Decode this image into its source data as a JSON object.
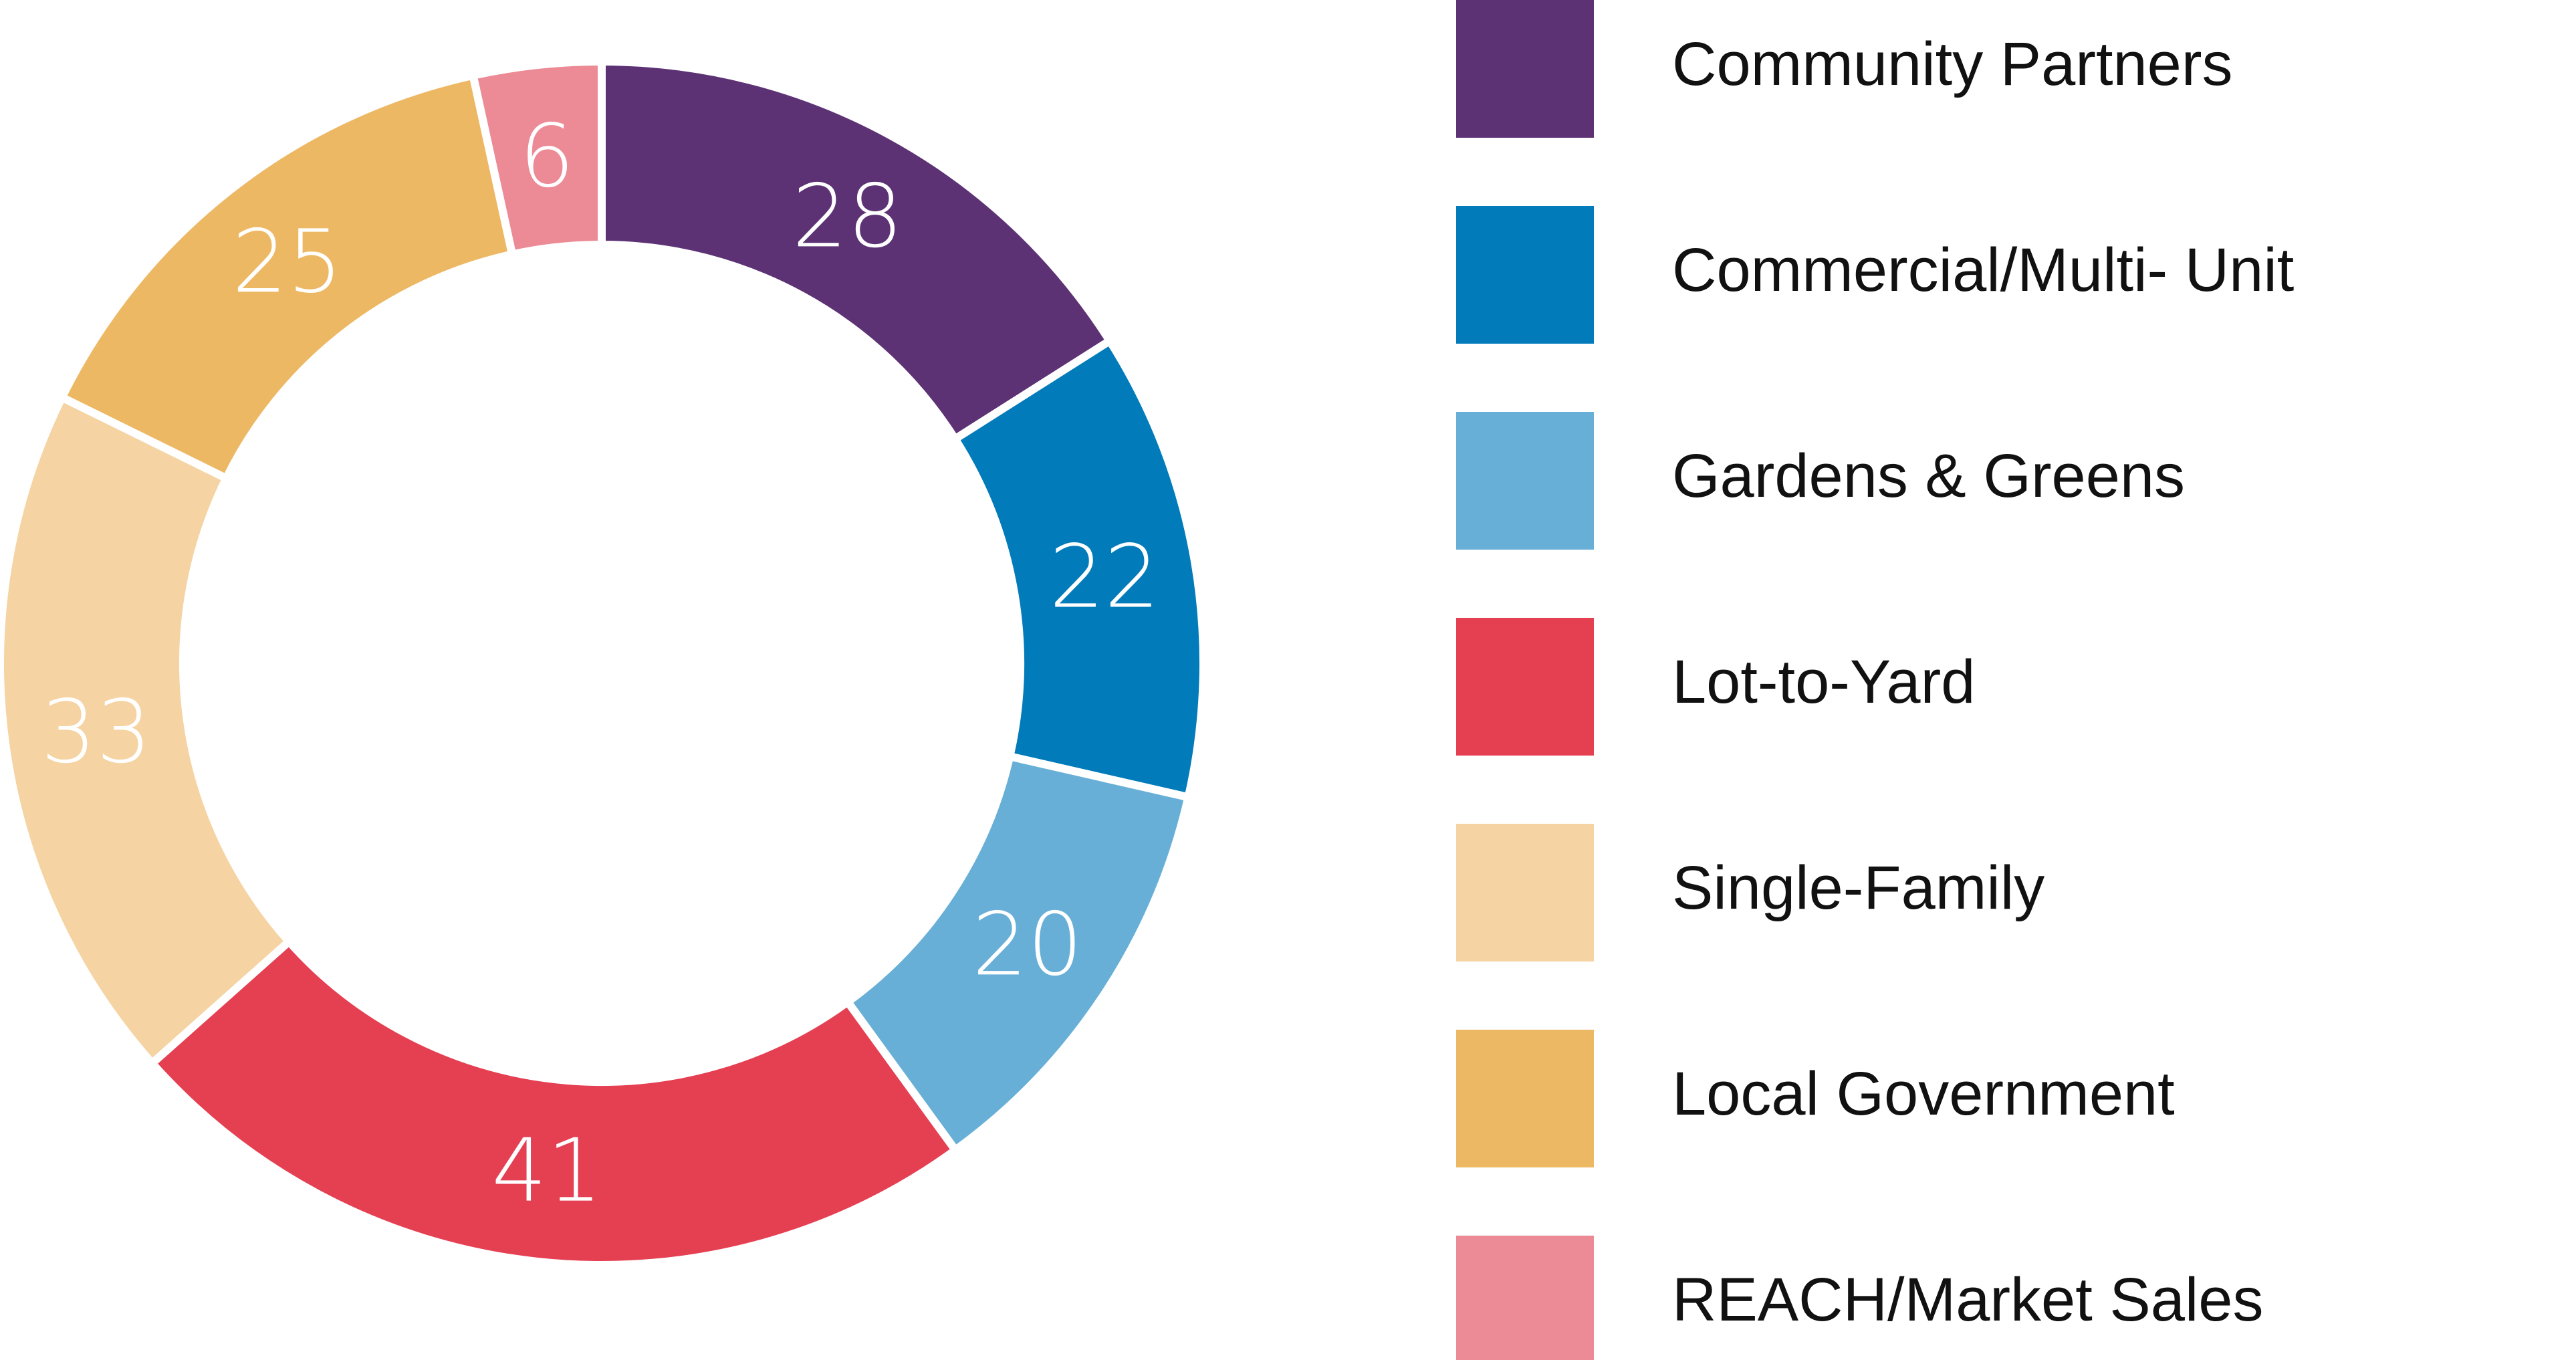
{
  "chart_data": {
    "type": "pie",
    "categories": [
      "Community Partners",
      "Commercial/Multi- Unit",
      "Gardens & Greens",
      "Lot-to-Yard",
      "Single-Family",
      "Local Government",
      "REACH/Market Sales"
    ],
    "values": [
      28,
      22,
      20,
      41,
      33,
      25,
      6
    ],
    "colors": [
      "#5c3275",
      "#017bba",
      "#67afd6",
      "#e53f52",
      "#f5d3a2",
      "#edb864",
      "#ec8a96"
    ]
  }
}
